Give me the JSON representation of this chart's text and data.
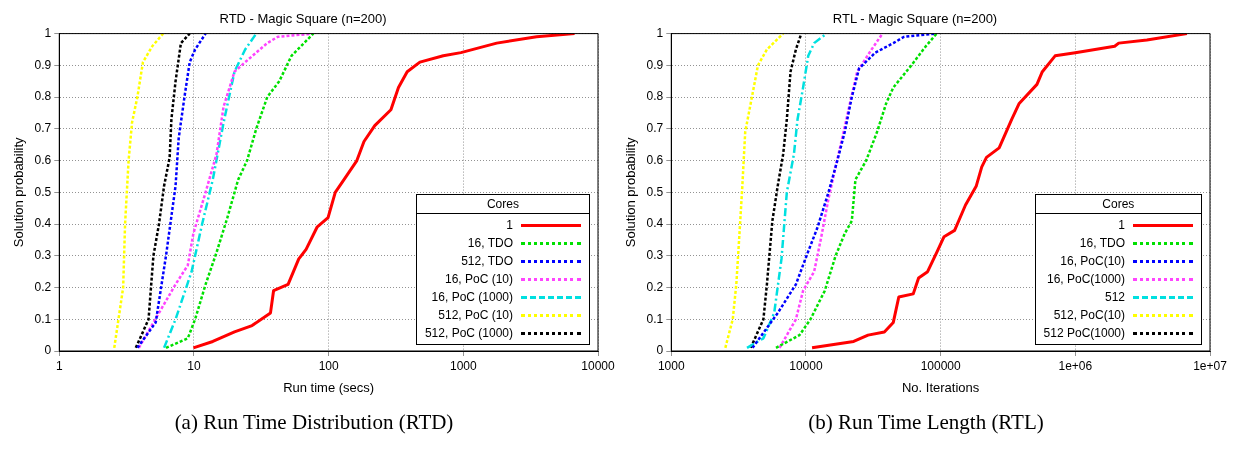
{
  "chart_data": [
    {
      "type": "line",
      "title": "RTD - Magic Square (n=200)",
      "xlabel": "Run time (secs)",
      "ylabel": "Solution probability",
      "log": "x",
      "xlim": [
        1,
        10000
      ],
      "xticks": [
        1,
        10,
        100,
        1000,
        10000
      ],
      "ylim": [
        0,
        1
      ],
      "yticks": [
        0,
        0.1,
        0.2,
        0.3,
        0.4,
        0.5,
        0.6,
        0.7,
        0.8,
        0.9,
        1
      ],
      "grid": true,
      "legend": "bottom right",
      "legend_title": "Cores",
      "marker": "none",
      "annotations": [
        "(a) Run Time Distribution (RTD)"
      ],
      "series": [
        {
          "name": "1",
          "color": "#ff0000",
          "line_style": "solid",
          "x": [
            9.9,
            13.8,
            20,
            27,
            37,
            39,
            50,
            60,
            68,
            82,
            99,
            112,
            135,
            162,
            183,
            220,
            290,
            330,
            383,
            476,
            710,
            960,
            1770,
            3500,
            6700
          ],
          "values": [
            0.01,
            0.03,
            0.06,
            0.08,
            0.12,
            0.19,
            0.21,
            0.29,
            0.32,
            0.39,
            0.42,
            0.5,
            0.55,
            0.6,
            0.66,
            0.71,
            0.76,
            0.83,
            0.88,
            0.91,
            0.93,
            0.94,
            0.97,
            0.99,
            1
          ]
        },
        {
          "name": "16, TDO",
          "color": "#00e000",
          "line_style": "dotted",
          "x": [
            6.2,
            9,
            10.2,
            12.2,
            14.7,
            17.7,
            21.3,
            24.8,
            29,
            35,
            43,
            53,
            77
          ],
          "values": [
            0.01,
            0.04,
            0.1,
            0.21,
            0.31,
            0.42,
            0.54,
            0.6,
            0.7,
            0.8,
            0.85,
            0.93,
            1
          ]
        },
        {
          "name": "512, TDO",
          "color": "#0000ff",
          "line_style": "dotted",
          "x": [
            3.8,
            5.2,
            6.2,
            7.3,
            7.7,
            8.5,
            9.3,
            10.2,
            12.2
          ],
          "values": [
            0.01,
            0.09,
            0.3,
            0.52,
            0.67,
            0.8,
            0.91,
            0.95,
            1
          ]
        },
        {
          "name": "16, PoC (10)",
          "color": "#ff44ff",
          "line_style": "dotted",
          "x": [
            3.9,
            5.5,
            7.3,
            9,
            9.9,
            12.2,
            14.7,
            16.6,
            20,
            24,
            35,
            42,
            77
          ],
          "values": [
            0.01,
            0.12,
            0.21,
            0.27,
            0.37,
            0.5,
            0.62,
            0.77,
            0.88,
            0.91,
            0.97,
            0.99,
            1
          ]
        },
        {
          "name": "16, PoC (1000)",
          "color": "#00e0e0",
          "line_style": "dashed",
          "x": [
            6,
            7.3,
            9.6,
            11.5,
            13.8,
            16.6,
            20,
            24,
            29
          ],
          "values": [
            0.01,
            0.1,
            0.25,
            0.4,
            0.54,
            0.72,
            0.88,
            0.95,
            1
          ]
        },
        {
          "name": "512, PoC (10)",
          "color": "#ffff00",
          "line_style": "dotted",
          "x": [
            2.56,
            2.98,
            3.08,
            3.27,
            3.47,
            3.8,
            4.18,
            4.9,
            5.9
          ],
          "values": [
            0.01,
            0.2,
            0.4,
            0.6,
            0.72,
            0.8,
            0.91,
            0.96,
            1
          ]
        },
        {
          "name": "512, PoC (1000)",
          "color": "#000000",
          "line_style": "dotted",
          "x": [
            3.7,
            4.6,
            5,
            5.5,
            6,
            6.6,
            6.8,
            7.3,
            8,
            9.3
          ],
          "values": [
            0.01,
            0.1,
            0.3,
            0.4,
            0.52,
            0.61,
            0.73,
            0.85,
            0.97,
            1
          ]
        }
      ]
    },
    {
      "type": "line",
      "title": "RTL - Magic Square (n=200)",
      "xlabel": "No. Iterations",
      "ylabel": "Solution probability",
      "log": "x",
      "xlim": [
        1000,
        10000000
      ],
      "xticks": [
        1000,
        10000,
        100000,
        {
          "value": 1000000,
          "label": "1e+06"
        },
        {
          "value": 10000000,
          "label": "1e+07"
        }
      ],
      "ylim": [
        0,
        1
      ],
      "yticks": [
        0,
        0.1,
        0.2,
        0.3,
        0.4,
        0.5,
        0.6,
        0.7,
        0.8,
        0.9,
        1
      ],
      "grid": true,
      "legend": "bottom right",
      "legend_title": "Cores",
      "marker": "none",
      "annotations": [
        "(b) Run Time Length (RTL)"
      ],
      "series": [
        {
          "name": "1",
          "color": "#ff0000",
          "line_style": "solid",
          "x": [
            11100,
            22600,
            28900,
            38200,
            44500,
            48900,
            62600,
            68600,
            80000,
            93400,
            106000,
            127000,
            153000,
            184000,
            202000,
            219000,
            272000,
            337000,
            383000,
            519000,
            569000,
            708000,
            1000000,
            1960000,
            2100000,
            3400000,
            6740000
          ],
          "values": [
            0.01,
            0.03,
            0.05,
            0.06,
            0.09,
            0.17,
            0.18,
            0.23,
            0.25,
            0.31,
            0.36,
            0.38,
            0.46,
            0.52,
            0.58,
            0.61,
            0.64,
            0.73,
            0.78,
            0.84,
            0.88,
            0.93,
            0.94,
            0.96,
            0.97,
            0.98,
            1
          ]
        },
        {
          "name": "16, TDO",
          "color": "#00e000",
          "line_style": "dotted",
          "x": [
            5990,
            8950,
            10800,
            13800,
            16600,
            19400,
            21900,
            23300,
            28000,
            33700,
            39400,
            44500,
            60600,
            77600,
            93400
          ],
          "values": [
            0.01,
            0.05,
            0.1,
            0.19,
            0.3,
            0.37,
            0.41,
            0.54,
            0.6,
            0.69,
            0.78,
            0.83,
            0.9,
            0.96,
            1
          ]
        },
        {
          "name": "16, PoC(10)",
          "color": "#0000ff",
          "line_style": "dotted",
          "x": [
            4010,
            6180,
            8420,
            10100,
            12200,
            14700,
            17100,
            19400,
            21900,
            24800,
            32700,
            44500,
            53600,
            93400
          ],
          "values": [
            0.01,
            0.12,
            0.21,
            0.3,
            0.39,
            0.5,
            0.6,
            0.69,
            0.8,
            0.89,
            0.94,
            0.97,
            0.99,
            1
          ]
        },
        {
          "name": "16, PoC(1000)",
          "color": "#ff44ff",
          "line_style": "dotted",
          "x": [
            6370,
            8420,
            9520,
            11500,
            13000,
            14700,
            16600,
            18800,
            21200,
            24000,
            30700,
            37000
          ],
          "values": [
            0.01,
            0.1,
            0.19,
            0.25,
            0.36,
            0.48,
            0.58,
            0.68,
            0.78,
            0.88,
            0.95,
            1
          ]
        },
        {
          "name": "512",
          "color": "#00e0e0",
          "line_style": "dashed",
          "x": [
            3650,
            4830,
            5810,
            6580,
            7210,
            8140,
            8660,
            9520,
            10400,
            11500,
            14200
          ],
          "values": [
            0.01,
            0.04,
            0.12,
            0.29,
            0.5,
            0.62,
            0.73,
            0.83,
            0.93,
            0.97,
            1
          ]
        },
        {
          "name": "512, PoC(10)",
          "color": "#ffff00",
          "line_style": "dotted",
          "x": [
            2520,
            2860,
            3040,
            3230,
            3370,
            3540,
            4010,
            4400,
            5130,
            6770
          ],
          "values": [
            0.01,
            0.1,
            0.21,
            0.39,
            0.52,
            0.69,
            0.81,
            0.9,
            0.95,
            1
          ]
        },
        {
          "name": "512 PoC(1000)",
          "color": "#000000",
          "line_style": "dotted",
          "x": [
            3890,
            4830,
            5130,
            5630,
            6170,
            6770,
            7210,
            7680,
            8420,
            9230
          ],
          "values": [
            0.01,
            0.1,
            0.21,
            0.41,
            0.52,
            0.62,
            0.73,
            0.88,
            0.95,
            1
          ]
        }
      ]
    }
  ]
}
